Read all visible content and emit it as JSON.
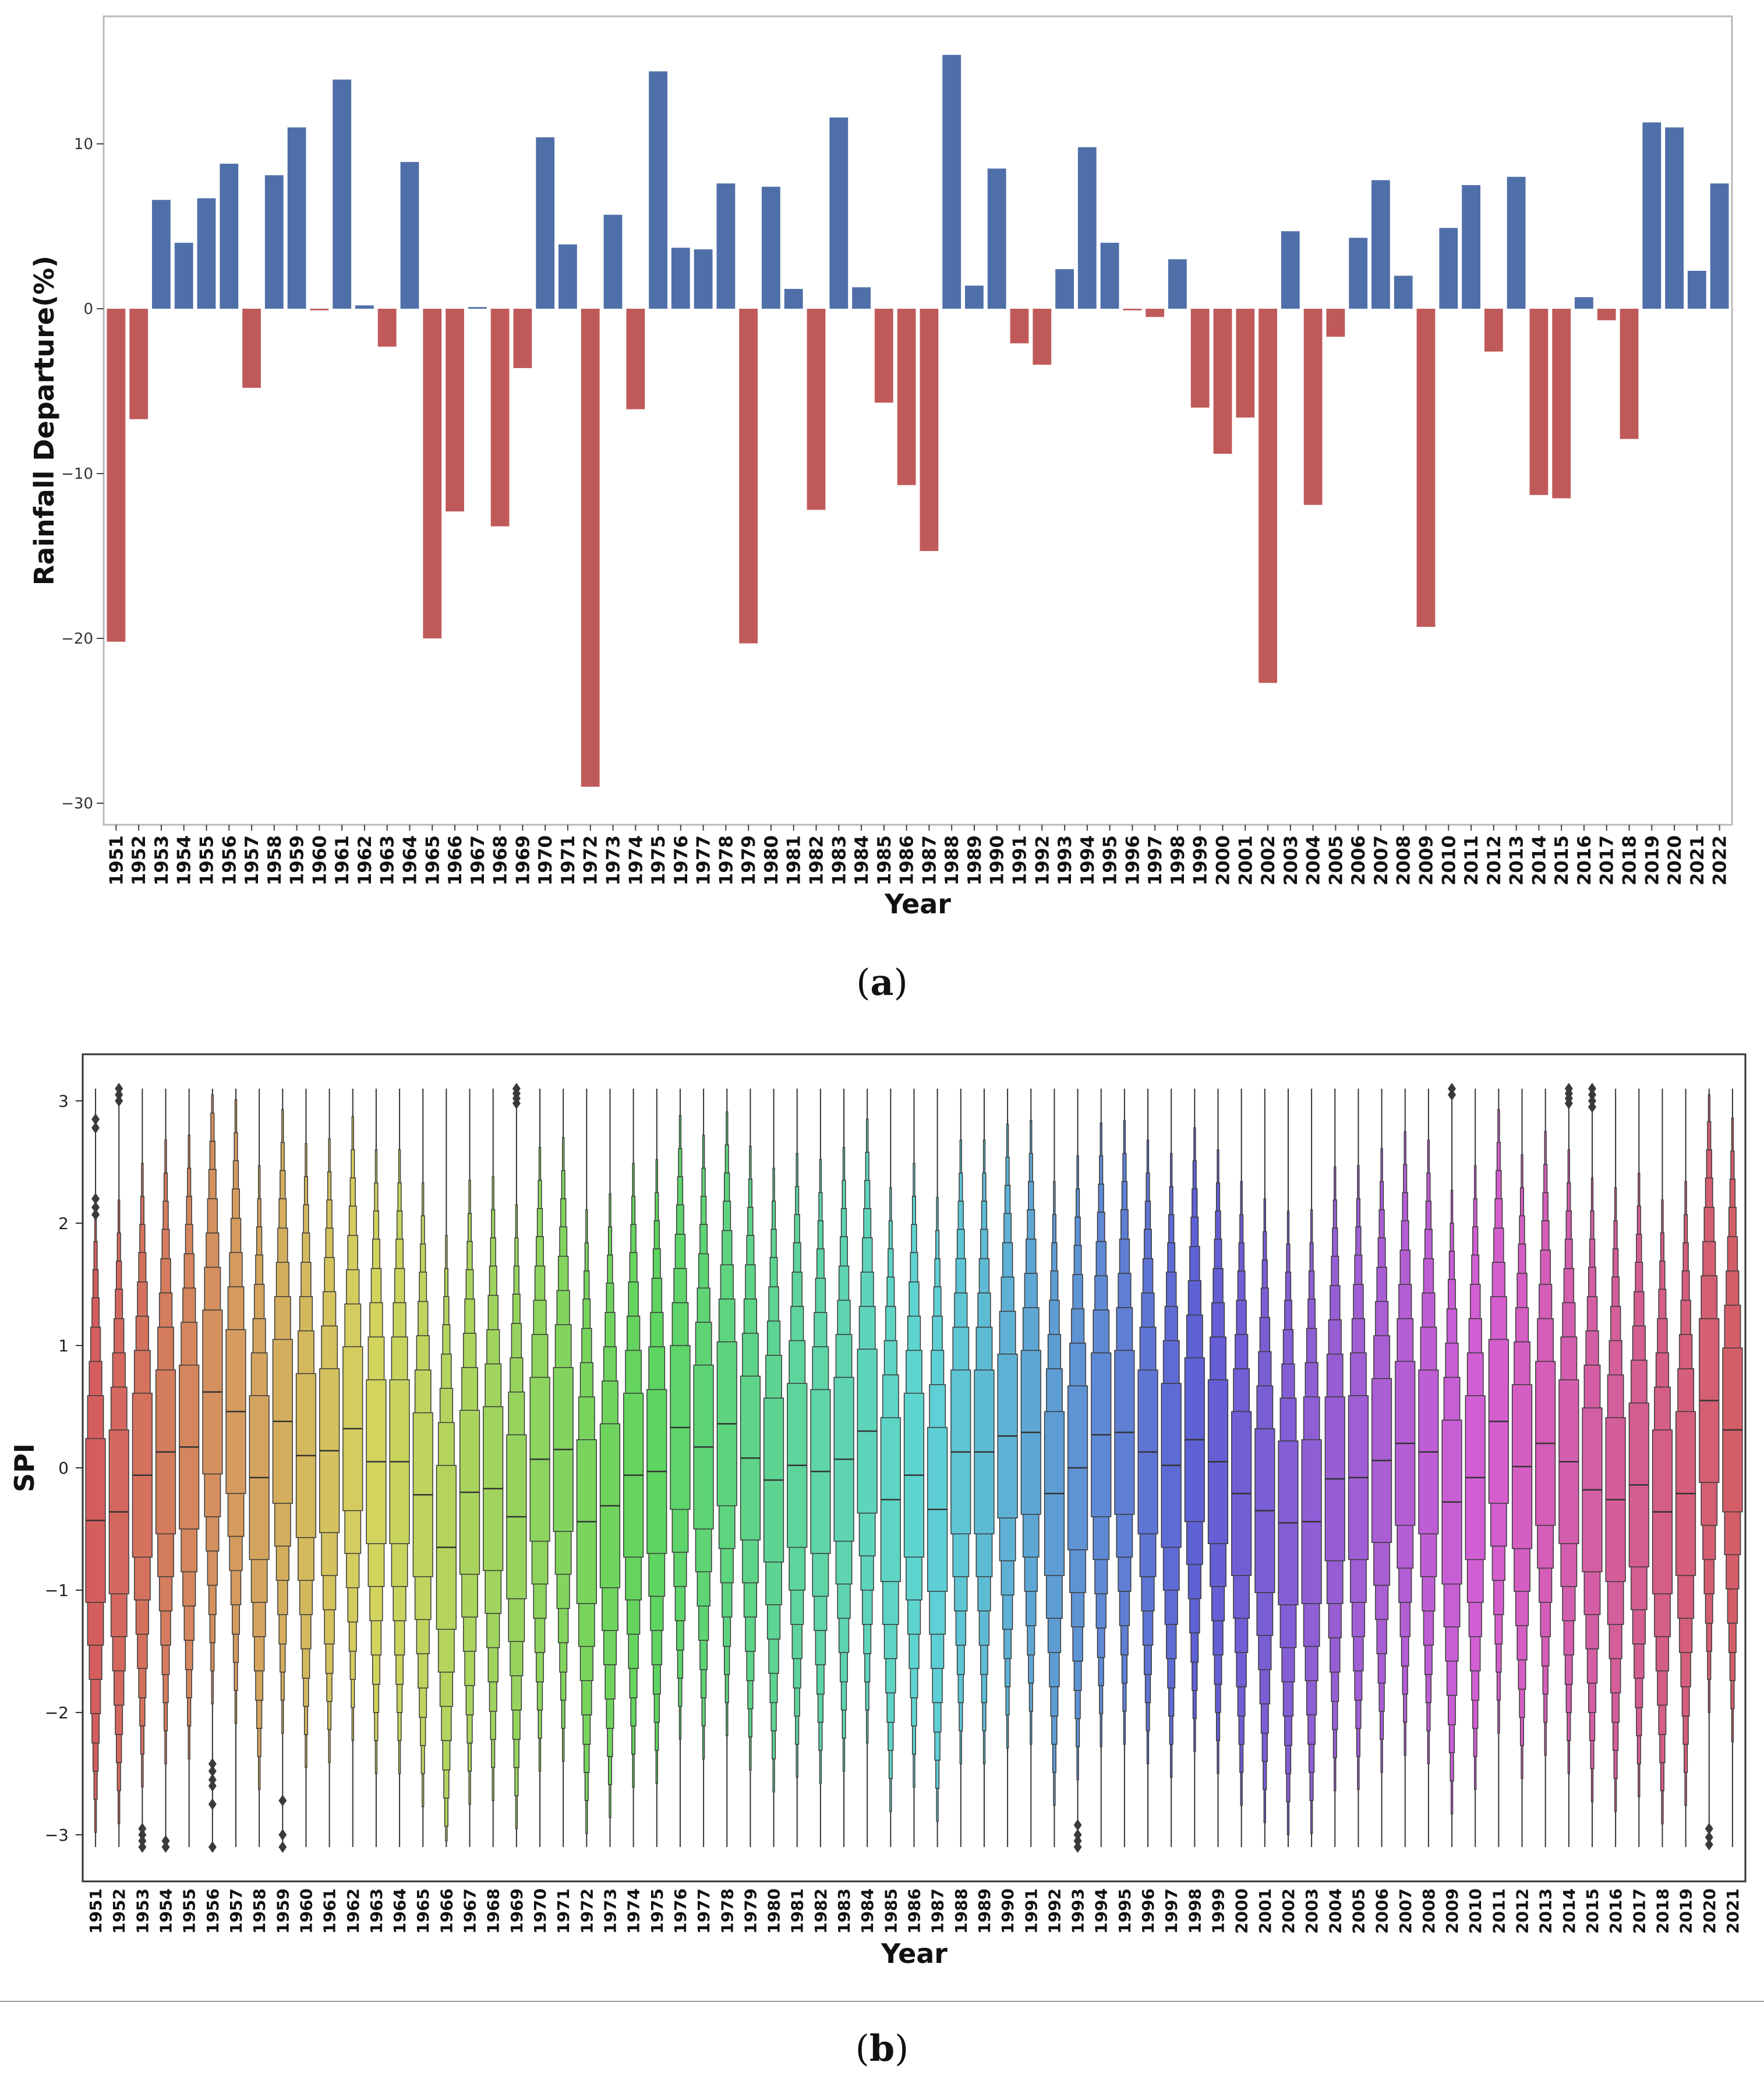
{
  "chart_data": [
    {
      "type": "bar",
      "panel": "a",
      "ylabel": "Rainfall Departure(%)",
      "xlabel": "Year",
      "ylim": [
        -31,
        18
      ],
      "yticks": [
        10,
        0,
        -10,
        -20,
        -30
      ],
      "ytick_labels": [
        "10",
        "0",
        "−10",
        "−20",
        "−30"
      ],
      "positive_color": "#4f6fa8",
      "negative_color": "#c05a5a",
      "categories": [
        "1951",
        "1952",
        "1953",
        "1954",
        "1955",
        "1956",
        "1957",
        "1958",
        "1959",
        "1960",
        "1961",
        "1962",
        "1963",
        "1964",
        "1965",
        "1966",
        "1967",
        "1968",
        "1969",
        "1970",
        "1971",
        "1972",
        "1973",
        "1974",
        "1975",
        "1976",
        "1977",
        "1978",
        "1979",
        "1980",
        "1981",
        "1982",
        "1983",
        "1984",
        "1985",
        "1986",
        "1987",
        "1988",
        "1989",
        "1990",
        "1991",
        "1992",
        "1993",
        "1994",
        "1995",
        "1996",
        "1997",
        "1998",
        "1999",
        "2000",
        "2001",
        "2002",
        "2003",
        "2004",
        "2005",
        "2006",
        "2007",
        "2008",
        "2009",
        "2010",
        "2011",
        "2012",
        "2013",
        "2014",
        "2015",
        "2016",
        "2017",
        "2018",
        "2019",
        "2020",
        "2021",
        "2022"
      ],
      "values": [
        -20.2,
        -6.7,
        6.6,
        4.0,
        6.7,
        8.8,
        -4.8,
        8.1,
        11.0,
        -0.1,
        13.9,
        0.2,
        -2.3,
        8.9,
        -20.0,
        -12.3,
        0.1,
        -13.2,
        -3.6,
        10.4,
        3.9,
        -29.0,
        5.7,
        -6.1,
        14.4,
        3.7,
        3.6,
        7.6,
        -20.3,
        7.4,
        1.2,
        -12.2,
        11.6,
        1.3,
        -5.7,
        -10.7,
        -14.7,
        15.4,
        1.4,
        8.5,
        -2.1,
        -3.4,
        2.4,
        9.8,
        4.0,
        -0.1,
        -0.5,
        3.0,
        -6.0,
        -8.8,
        -6.6,
        -22.7,
        4.7,
        -11.9,
        -1.7,
        4.3,
        7.8,
        2.0,
        -19.3,
        4.9,
        7.5,
        -2.6,
        8.0,
        -11.3,
        -11.5,
        0.7,
        -0.7,
        -7.9,
        11.3,
        11.0,
        2.3,
        7.6
      ]
    },
    {
      "type": "boxen",
      "panel": "b",
      "ylabel": "SPI",
      "xlabel": "Year",
      "ylim": [
        -3.3,
        3.3
      ],
      "yticks": [
        3,
        2,
        1,
        0,
        -1,
        -2,
        -3
      ],
      "ytick_labels": [
        "3",
        "2",
        "1",
        "0",
        "−1",
        "−2",
        "−3"
      ],
      "categories": [
        "1951",
        "1952",
        "1953",
        "1954",
        "1955",
        "1956",
        "1957",
        "1958",
        "1959",
        "1960",
        "1961",
        "1962",
        "1963",
        "1964",
        "1965",
        "1966",
        "1967",
        "1968",
        "1969",
        "1970",
        "1971",
        "1972",
        "1973",
        "1974",
        "1975",
        "1976",
        "1977",
        "1978",
        "1979",
        "1980",
        "1981",
        "1982",
        "1983",
        "1984",
        "1985",
        "1986",
        "1987",
        "1988",
        "1989",
        "1990",
        "1991",
        "1992",
        "1993",
        "1994",
        "1995",
        "1996",
        "1997",
        "1998",
        "1999",
        "2000",
        "2001",
        "2002",
        "2003",
        "2004",
        "2005",
        "2006",
        "2007",
        "2008",
        "2009",
        "2010",
        "2011",
        "2012",
        "2013",
        "2014",
        "2015",
        "2016",
        "2017",
        "2018",
        "2019",
        "2020",
        "2021"
      ],
      "medians": [
        -0.43,
        -0.36,
        -0.06,
        0.13,
        0.17,
        0.62,
        0.46,
        -0.08,
        0.38,
        0.1,
        0.14,
        0.32,
        0.05,
        0.05,
        -0.22,
        -0.65,
        -0.2,
        -0.17,
        -0.4,
        0.07,
        0.15,
        -0.44,
        -0.31,
        -0.06,
        -0.03,
        0.33,
        0.17,
        0.36,
        0.08,
        -0.1,
        0.02,
        -0.03,
        0.07,
        0.3,
        -0.26,
        -0.06,
        -0.34,
        0.13,
        0.13,
        0.26,
        0.29,
        -0.21,
        0.0,
        0.27,
        0.29,
        0.13,
        0.02,
        0.23,
        0.05,
        -0.21,
        -0.35,
        -0.45,
        -0.44,
        -0.09,
        -0.08,
        0.06,
        0.2,
        0.13,
        -0.28,
        -0.08,
        0.38,
        0.01,
        0.2,
        0.05,
        -0.18,
        -0.26,
        -0.14,
        -0.36,
        -0.21,
        0.55,
        0.31
      ],
      "outliers": {
        "1951": [
          2.85,
          2.78,
          2.2,
          2.13,
          2.07
        ],
        "1952": [
          3.1,
          3.05,
          3.0
        ],
        "1953": [
          -2.95,
          -3.0,
          -3.05,
          -3.1
        ],
        "1954": [
          -3.05,
          -3.1
        ],
        "1956": [
          -2.42,
          -2.48,
          -2.55,
          -2.6,
          -2.75,
          -3.1
        ],
        "1959": [
          -2.72,
          -3.0,
          -3.1
        ],
        "1969": [
          3.1,
          3.06,
          3.02,
          2.98
        ],
        "1993": [
          -2.92,
          -3.0,
          -3.05,
          -3.1
        ],
        "2009": [
          3.1,
          3.05
        ],
        "2014": [
          3.1,
          3.06,
          3.02,
          2.98
        ],
        "2015": [
          3.1,
          3.05,
          3.0,
          2.95
        ],
        "2020": [
          -2.95,
          -3.02,
          -3.08
        ]
      }
    }
  ],
  "captions": {
    "a_open": "(",
    "a_letter": "a",
    "a_close": ")",
    "b_open": "(",
    "b_letter": "b",
    "b_close": ")"
  }
}
